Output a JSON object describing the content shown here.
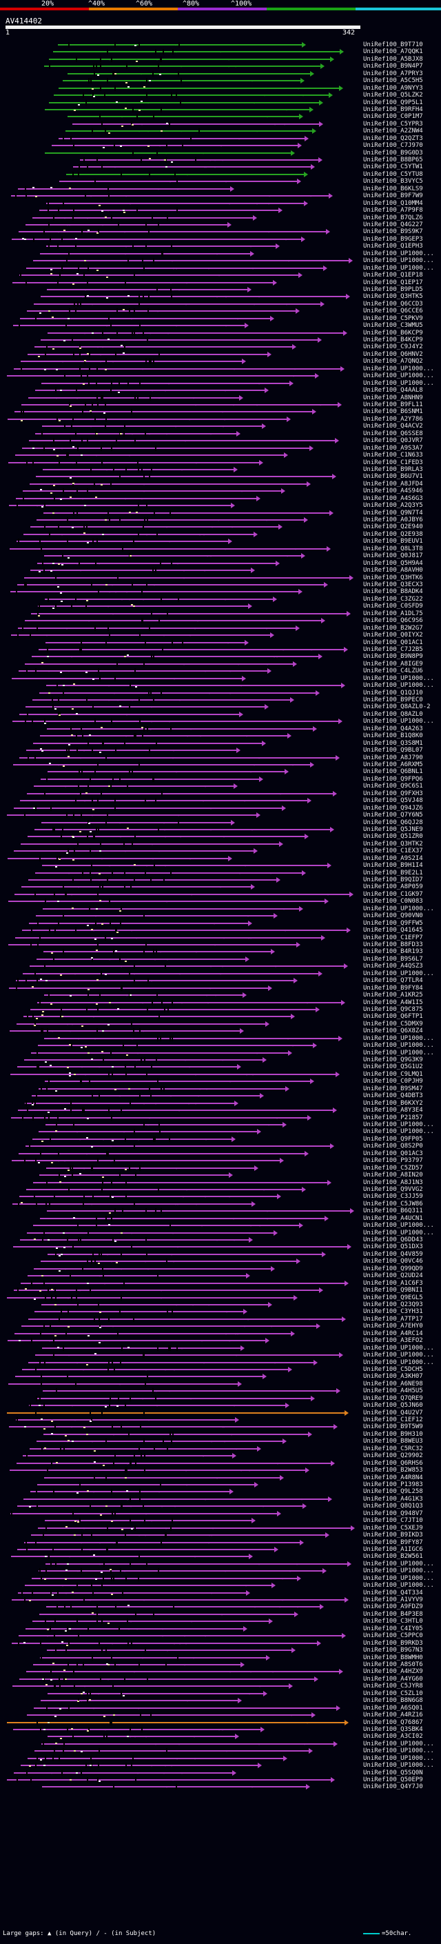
{
  "legend": {
    "labels": [
      "20%",
      "^40%",
      "^60%",
      "^80%",
      "^100%"
    ],
    "colors": [
      "#d40000",
      "#e87a00",
      "#9a2bd1",
      "#1aa316",
      "#1ac6d9"
    ]
  },
  "query": {
    "title": "AV414402",
    "start": "1",
    "end": "342"
  },
  "hits": [
    "UniRef100_B9T710",
    "UniRef100_A7QQK1",
    "UniRef100_A5BJX8",
    "UniRef100_B9N4P7",
    "UniRef100_A7PRY3",
    "UniRef100_A5C5H5",
    "UniRef100_A9NYY3",
    "UniRef100_Q5LZK2",
    "UniRef100_Q9P5L1",
    "UniRef100_B9RFH4",
    "UniRef100_C0P1M7",
    "UniRef100_C5YPR3",
    "UniRef100_A2ZNW4",
    "UniRef100_Q2QZT3",
    "UniRef100_C7J970",
    "UniRef100_B9G0D3",
    "UniRef100_B8BP65",
    "UniRef100_C5YTW1",
    "UniRef100_C5YTU8",
    "UniRef100_B3VYC5",
    "UniRef100_B6KLS9",
    "UniRef100_B9F7W9",
    "UniRef100_Q10MM4",
    "UniRef100_A7P9F8",
    "UniRef100_B7QLZ6",
    "UniRef100_Q4G227",
    "UniRef100_B9S9K7",
    "UniRef100_B9GEP3",
    "UniRef100_Q1EPH3",
    "UniRef100_UP1000...",
    "UniRef100_UP1000...",
    "UniRef100_UP1000...",
    "UniRef100_Q1EP18",
    "UniRef100_Q1EP17",
    "UniRef100_B9PLD5",
    "UniRef100_Q3HTK5",
    "UniRef100_Q6CCD3",
    "UniRef100_Q6CCE6",
    "UniRef100_C5PKV9",
    "UniRef100_C3WMU5",
    "UniRef100_B6KCP9",
    "UniRef100_B4KCP9",
    "UniRef100_C9J4Y2",
    "UniRef100_Q6HNV2",
    "UniRef100_A7QNQ2",
    "UniRef100_UP1000...",
    "UniRef100_UP1000...",
    "UniRef100_UP1000...",
    "UniRef100_Q4AAL8",
    "UniRef100_A8NHN9",
    "UniRef100_B9FL11",
    "UniRef100_B6SNM1",
    "UniRef100_A2Y786",
    "UniRef100_Q4ACV2",
    "UniRef100_Q6SSE8",
    "UniRef100_Q0JVR7",
    "UniRef100_A9S3A7",
    "UniRef100_C1N633",
    "UniRef100_C1FED3",
    "UniRef100_B9RLA3",
    "UniRef100_B6U7V1",
    "UniRef100_A8JFD4",
    "UniRef100_A4S946",
    "UniRef100_A4S6G3",
    "UniRef100_A2Q3Y5",
    "UniRef100_Q9N7T4",
    "UniRef100_A0JBY6",
    "UniRef100_Q2E940",
    "UniRef100_Q2E938",
    "UniRef100_B9EUV1",
    "UniRef100_Q8L3T8",
    "UniRef100_Q0J817",
    "UniRef100_Q5H9A4",
    "UniRef100_A8AVH0",
    "UniRef100_Q3HTK6",
    "UniRef100_Q3ECX3",
    "UniRef100_B8ADK4",
    "UniRef100_C3ZG22",
    "UniRef100_C0SFD9",
    "UniRef100_A1DL75",
    "UniRef100_Q6C9S6",
    "UniRef100_B2W2G7",
    "UniRef100_Q0IYX2",
    "UniRef100_Q01AC1",
    "UniRef100_C7J2B5",
    "UniRef100_B9N8P9",
    "UniRef100_A8IGE9",
    "UniRef100_C4LZU6",
    "UniRef100_UP1000...",
    "UniRef100_UP1000...",
    "UniRef100_Q1QJ10",
    "UniRef100_B9PEC0",
    "UniRef100_Q8AZL0-2",
    "UniRef100_Q8AZL0",
    "UniRef100_UP1000...",
    "UniRef100_Q4A263",
    "UniRef100_B1Q8K0",
    "UniRef100_Q3S8M1",
    "UniRef100_Q9BL07",
    "UniRef100_A8J790",
    "UniRef100_A6RXM5",
    "UniRef100_Q6BNL1",
    "UniRef100_Q9FPQ6",
    "UniRef100_Q9C6S1",
    "UniRef100_Q9FXH3",
    "UniRef100_Q5VJ48",
    "UniRef100_Q94JZ6",
    "UniRef100_Q7Y6N5",
    "UniRef100_Q6QJ28",
    "UniRef100_Q5JNE9",
    "UniRef100_Q51ZR0",
    "UniRef100_Q3HTK2",
    "UniRef100_C1EX37",
    "UniRef100_A9S2I4",
    "UniRef100_B9H1I4",
    "UniRef100_B9E2L1",
    "UniRef100_B9QID7",
    "UniRef100_A8P059",
    "UniRef100_C1GK97",
    "UniRef100_C0N083",
    "UniRef100_UP1000...",
    "UniRef100_Q90VN0",
    "UniRef100_Q9FFW5",
    "UniRef100_Q41645",
    "UniRef100_C1EFP7",
    "UniRef100_B8FD33",
    "UniRef100_B4R193",
    "UniRef100_B9S6L7",
    "UniRef100_A4QSZ3",
    "UniRef100_UP1000...",
    "UniRef100_Q7TLR4",
    "UniRef100_B9FY84",
    "UniRef100_A1KR25",
    "UniRef100_A4W1I5",
    "UniRef100_Q9C875",
    "UniRef100_Q6FTP1",
    "UniRef100_C5DMX9",
    "UniRef100_Q6X8Z4",
    "UniRef100_UP1000...",
    "UniRef100_UP1000...",
    "UniRef100_UP1000...",
    "UniRef100_Q9G3K9",
    "UniRef100_Q5G1U2",
    "UniRef100_C9LMQ1",
    "UniRef100_C0PJH9",
    "UniRef100_B9SM47",
    "UniRef100_Q4DBT3",
    "UniRef100_B6KXY2",
    "UniRef100_A8Y3E4",
    "UniRef100_P21857",
    "UniRef100_UP1000...",
    "UniRef100_UP1000...",
    "UniRef100_Q9FP05",
    "UniRef100_Q8S2P0",
    "UniRef100_Q01AC3",
    "UniRef100_P93797",
    "UniRef100_C5ZD57",
    "UniRef100_A8IN20",
    "UniRef100_A8J1N3",
    "UniRef100_Q9VVG2",
    "UniRef100_C3JJ59",
    "UniRef100_C5JW86",
    "UniRef100_B6Q311",
    "UniRef100_A4UCN1",
    "UniRef100_UP1000...",
    "UniRef100_UP1000...",
    "UniRef100_Q6DD43",
    "UniRef100_Q51DX3",
    "UniRef100_Q4V859",
    "UniRef100_Q0VC46",
    "UniRef100_Q99QD9",
    "UniRef100_Q2UD24",
    "UniRef100_A1C6F3",
    "UniRef100_Q9BNI1",
    "UniRef100_Q9EGL5",
    "UniRef100_Q23Q93",
    "UniRef100_C3YH31",
    "UniRef100_A7TP17",
    "UniRef100_A7EHY0",
    "UniRef100_A4RC14",
    "UniRef100_A3EFO2",
    "UniRef100_UP1000...",
    "UniRef100_UP1000...",
    "UniRef100_UP1000...",
    "UniRef100_C5DCH5",
    "UniRef100_A3KH07",
    "UniRef100_A6NE98",
    "UniRef100_A4H5U5",
    "UniRef100_Q7QRE9",
    "UniRef100_Q5JN60",
    "UniRef100_Q4U2V7",
    "UniRef100_C1EF12",
    "UniRef100_B9T5W9",
    "UniRef100_B9H310",
    "UniRef100_B8WEU3",
    "UniRef100_C5RC32",
    "UniRef100_Q29902",
    "UniRef100_Q6RHS6",
    "UniRef100_B2W853",
    "UniRef100_A4R8N4",
    "UniRef100_P13983",
    "UniRef100_Q9L258",
    "UniRef100_A4G1K3",
    "UniRef100_Q8Q1Q3",
    "UniRef100_Q948V7",
    "UniRef100_C7JT10",
    "UniRef100_C5XEJ9",
    "UniRef100_B9IKD3",
    "UniRef100_B9FY87",
    "UniRef100_A1IGC6",
    "UniRef100_B2W561",
    "UniRef100_UP1000...",
    "UniRef100_UP1000...",
    "UniRef100_UP1000...",
    "UniRef100_UP1000...",
    "UniRef100_Q4T334",
    "UniRef100_A1VYV9",
    "UniRef100_A9FDZ9",
    "UniRef100_B4P3E8",
    "UniRef100_C3HTL0",
    "UniRef100_C4IY05",
    "UniRef100_C5PPC0",
    "UniRef100_B9RKD3",
    "UniRef100_B9G7N3",
    "UniRef100_B8WMH0",
    "UniRef100_A8S0T6",
    "UniRef100_A4HZX9",
    "UniRef100_A4YG60",
    "UniRef100_C5JYR8",
    "UniRef100_C5ZL10",
    "UniRef100_B8N6G8",
    "UniRef100_A6SQ01",
    "UniRef100_A4RZ16",
    "UniRef100_Q76867",
    "UniRef100_Q3SBK4",
    "UniRef100_A3CI02",
    "UniRef100_UP1000...",
    "UniRef100_UP1000...",
    "UniRef100_UP1000...",
    "UniRef100_UP1000...",
    "UniRef100_Q5SQ0N",
    "UniRef100_Q50EP9",
    "UniRef100_Q4Y7J0"
  ],
  "footer": {
    "gap_label": "Large gaps: ▲ (in Query) / - (in Subject)",
    "scale_label": "=50char."
  }
}
